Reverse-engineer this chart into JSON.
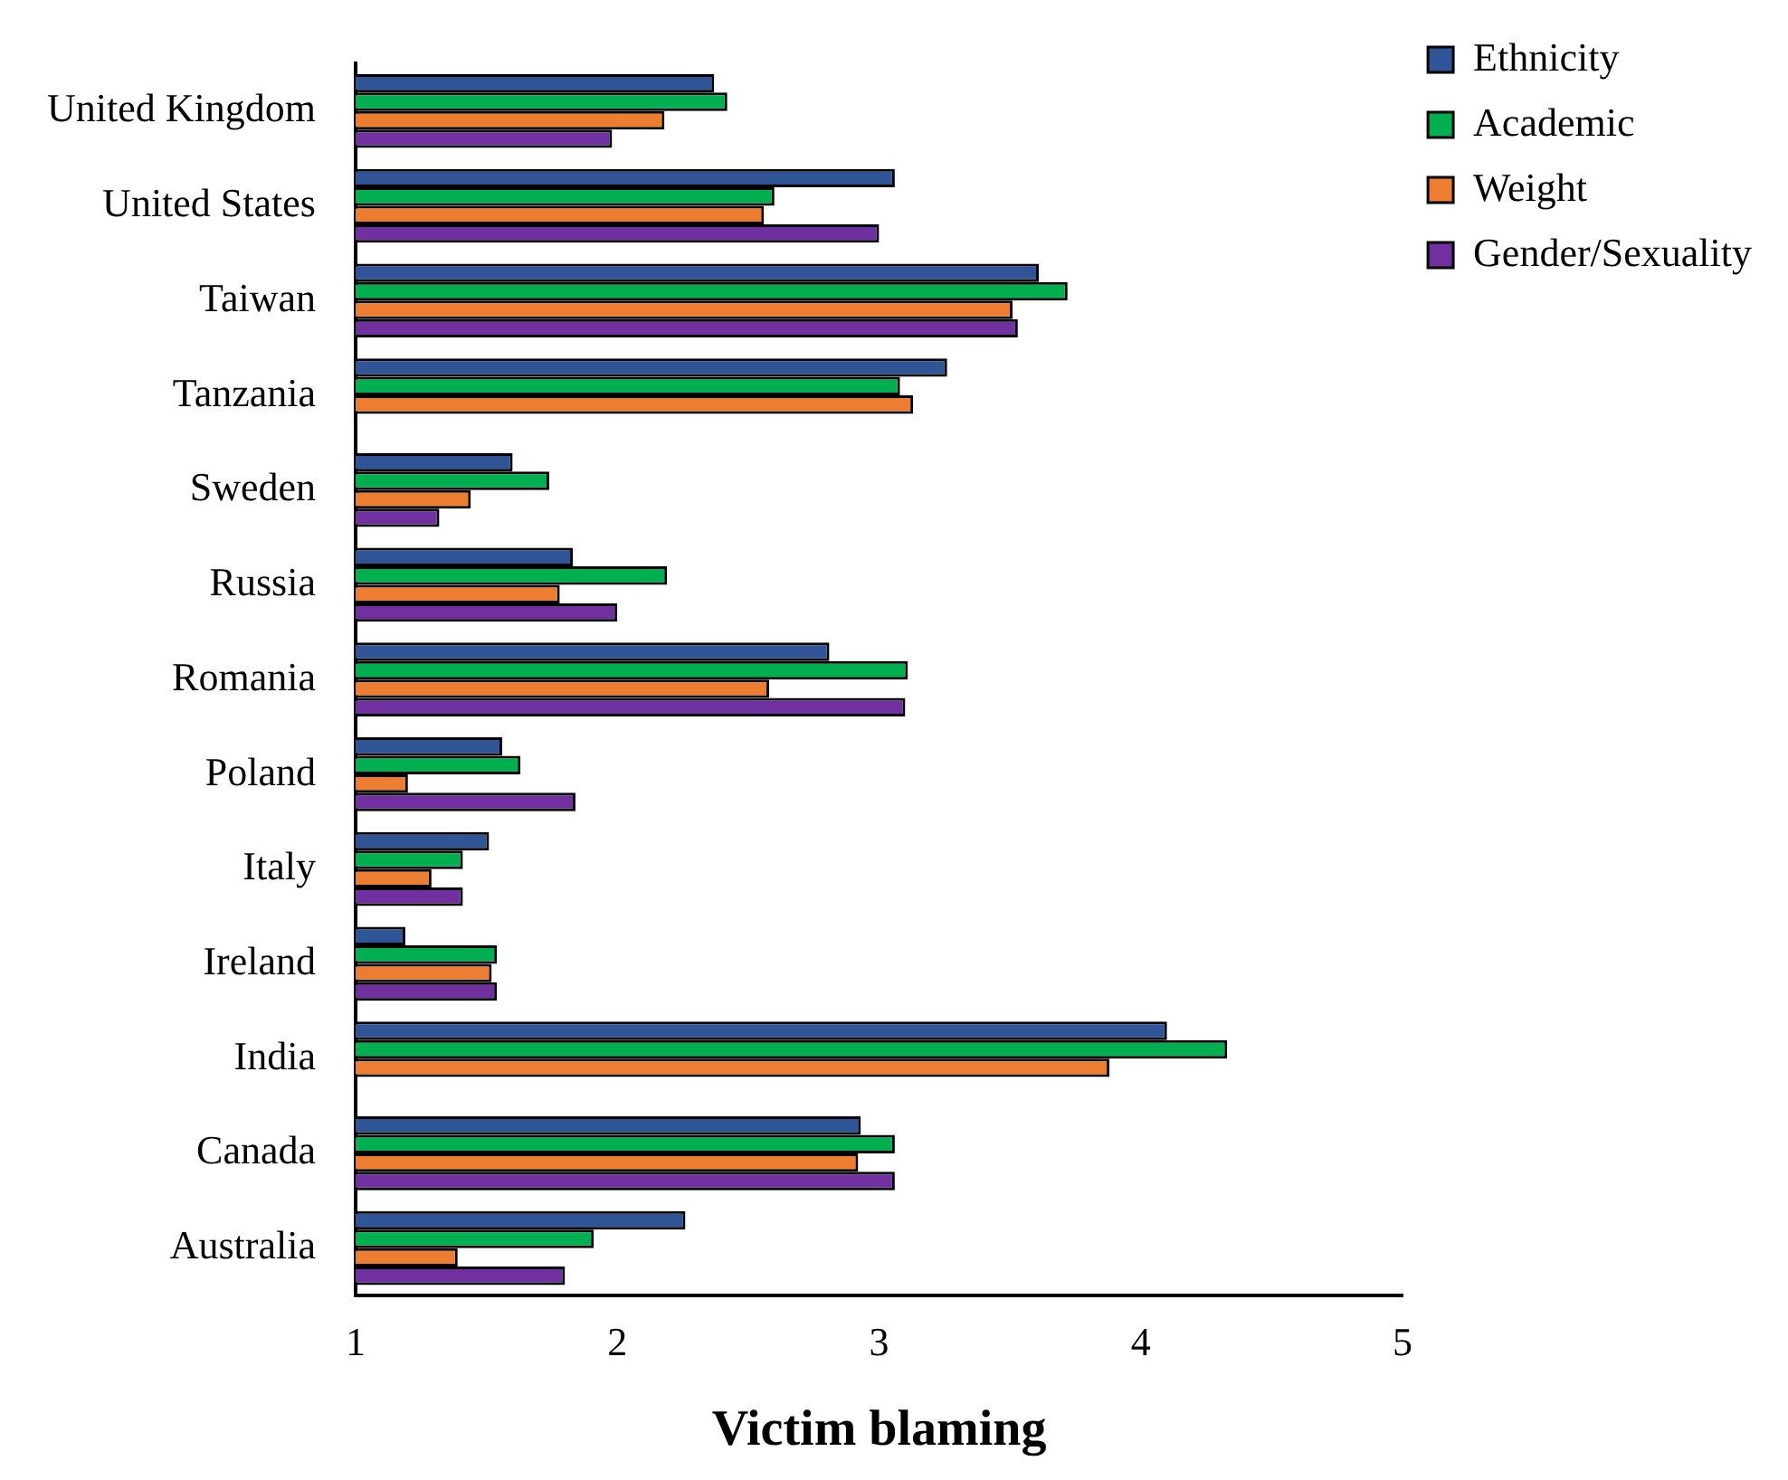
{
  "chart_data": {
    "type": "bar",
    "orientation": "horizontal",
    "xlabel": "Victim blaming",
    "categories": [
      "United Kingdom",
      "United States",
      "Taiwan",
      "Tanzania",
      "Sweden",
      "Russia",
      "Romania",
      "Poland",
      "Italy",
      "Ireland",
      "India",
      "Canada",
      "Australia"
    ],
    "series": [
      {
        "name": "Ethnicity",
        "color": "#2f5597",
        "values": [
          2.37,
          3.06,
          3.61,
          3.26,
          1.6,
          1.83,
          2.81,
          1.56,
          1.51,
          1.19,
          4.1,
          2.93,
          2.26
        ]
      },
      {
        "name": "Academic",
        "color": "#00b050",
        "values": [
          2.42,
          2.6,
          3.72,
          3.08,
          1.74,
          2.19,
          3.11,
          1.63,
          1.41,
          1.54,
          4.33,
          3.06,
          1.91
        ]
      },
      {
        "name": "Weight",
        "color": "#ed7d31",
        "values": [
          2.18,
          2.56,
          3.51,
          3.13,
          1.44,
          1.78,
          2.58,
          1.2,
          1.29,
          1.52,
          3.88,
          2.92,
          1.39
        ]
      },
      {
        "name": "Gender/Sexuality",
        "color": "#7030a0",
        "values": [
          1.98,
          3.0,
          3.53,
          null,
          1.32,
          2.0,
          3.1,
          1.84,
          1.41,
          1.54,
          null,
          3.06,
          1.8
        ]
      }
    ],
    "xlim": [
      1,
      5
    ],
    "xticks": [
      1,
      2,
      3,
      4,
      5
    ],
    "grid": false,
    "legend": "top right"
  }
}
